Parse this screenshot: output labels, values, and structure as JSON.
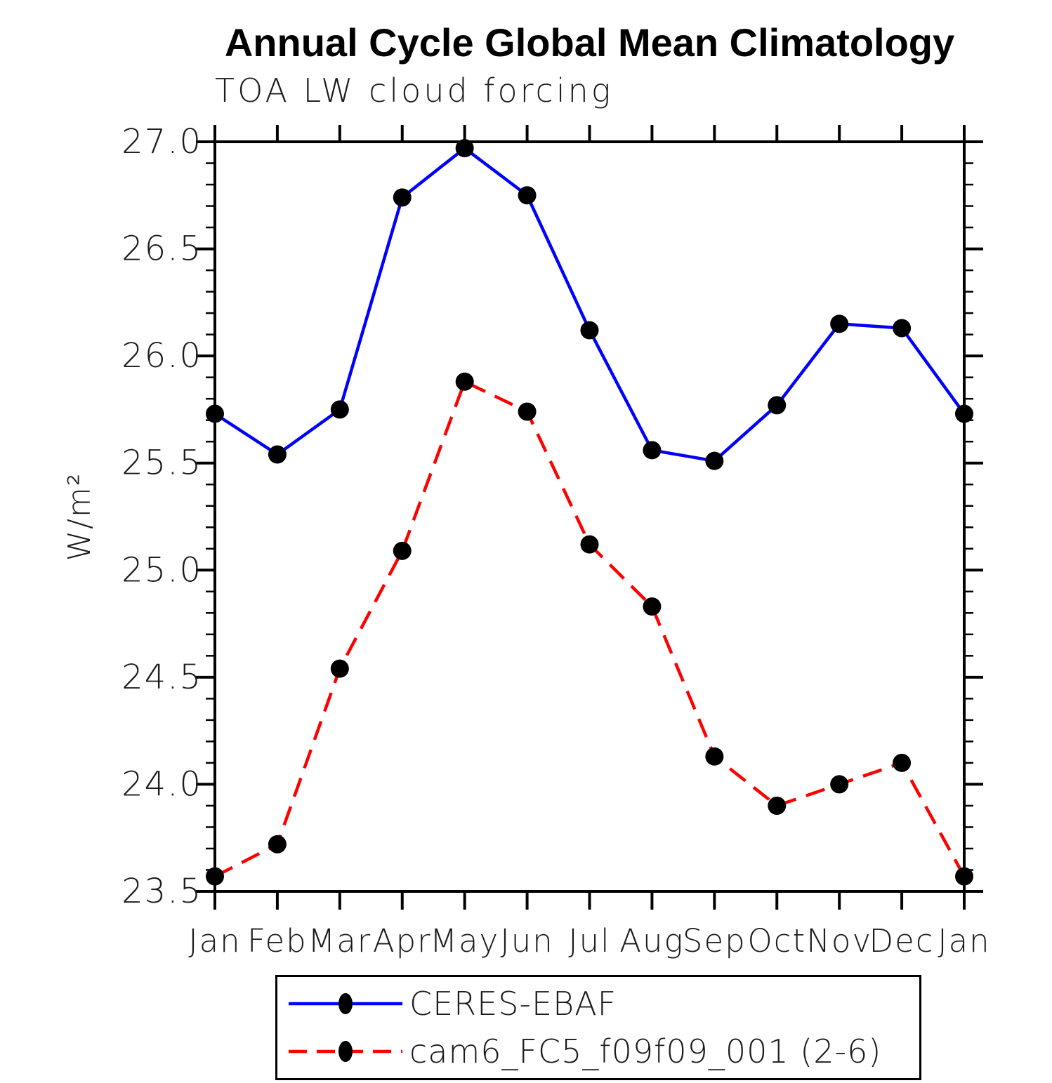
{
  "title": "Annual Cycle Global Mean Climatology",
  "subtitle": "TOA LW cloud forcing",
  "chart_data": {
    "type": "line",
    "x_categories": [
      "Jan",
      "Feb",
      "Mar",
      "Apr",
      "May",
      "Jun",
      "Jul",
      "Aug",
      "Sep",
      "Oct",
      "Nov",
      "Dec",
      "Jan"
    ],
    "ylabel": "W/m²",
    "ylim": [
      23.5,
      27.0
    ],
    "ytick_step": 0.5,
    "ytick_minor_step": 0.1,
    "ytick_labels": [
      "23.5",
      "24.0",
      "24.5",
      "25.0",
      "25.5",
      "26.0",
      "26.5",
      "27.0"
    ],
    "grid": false,
    "legend_position": "bottom-box",
    "marker": "circle",
    "marker_color": "#000000",
    "axis_color": "#000000",
    "series": [
      {
        "name": "CERES-EBAF",
        "color": "#0000ff",
        "style": "solid",
        "values": [
          25.73,
          25.54,
          25.75,
          26.74,
          26.97,
          26.75,
          26.12,
          25.56,
          25.51,
          25.77,
          26.15,
          26.13,
          25.73
        ]
      },
      {
        "name": "cam6_FC5_f09f09_001 (2-6)",
        "color": "#ff0000",
        "style": "dashed",
        "values": [
          23.57,
          23.72,
          24.54,
          25.09,
          25.88,
          25.74,
          25.12,
          24.83,
          24.13,
          23.9,
          24.0,
          24.1,
          23.57
        ]
      }
    ]
  }
}
